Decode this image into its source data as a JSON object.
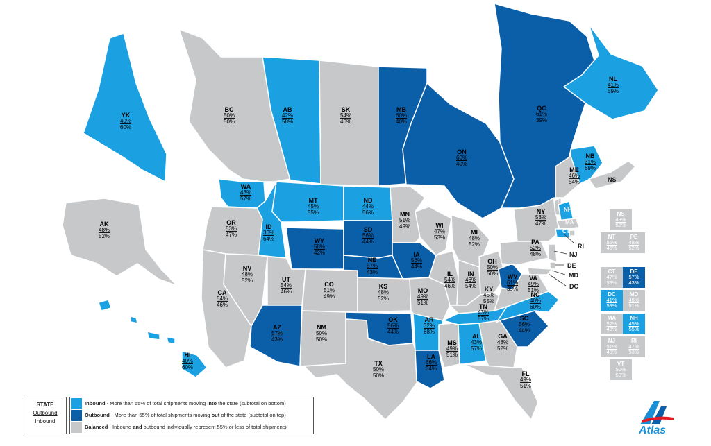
{
  "colors": {
    "inbound": "#1ba1e2",
    "outbound": "#0b5ea8",
    "balanced": "#c7c8ca",
    "border": "#ffffff"
  },
  "regions": [
    {
      "id": "YK",
      "cat": "inbound",
      "o": "40%",
      "i": "60%"
    },
    {
      "id": "BC",
      "cat": "balanced",
      "o": "50%",
      "i": "50%"
    },
    {
      "id": "AB",
      "cat": "inbound",
      "o": "42%",
      "i": "58%"
    },
    {
      "id": "SK",
      "cat": "balanced",
      "o": "54%",
      "i": "46%"
    },
    {
      "id": "MB",
      "cat": "outbound",
      "o": "60%",
      "i": "40%"
    },
    {
      "id": "ON",
      "cat": "outbound",
      "o": "60%",
      "i": "40%"
    },
    {
      "id": "QC",
      "cat": "outbound",
      "o": "61%",
      "i": "39%"
    },
    {
      "id": "NL",
      "cat": "inbound",
      "o": "41%",
      "i": "59%"
    },
    {
      "id": "NB",
      "cat": "inbound",
      "o": "31%",
      "i": "69%"
    },
    {
      "id": "AK",
      "cat": "balanced",
      "o": "48%",
      "i": "52%"
    },
    {
      "id": "WA",
      "cat": "inbound",
      "o": "43%",
      "i": "57%"
    },
    {
      "id": "OR",
      "cat": "balanced",
      "o": "53%",
      "i": "47%"
    },
    {
      "id": "ID",
      "cat": "inbound",
      "o": "36%",
      "i": "64%"
    },
    {
      "id": "MT",
      "cat": "inbound",
      "o": "45%",
      "i": "55%"
    },
    {
      "id": "ND",
      "cat": "inbound",
      "o": "44%",
      "i": "56%"
    },
    {
      "id": "MN",
      "cat": "balanced",
      "o": "51%",
      "i": "49%"
    },
    {
      "id": "WY",
      "cat": "outbound",
      "o": "58%",
      "i": "42%"
    },
    {
      "id": "SD",
      "cat": "outbound",
      "o": "56%",
      "i": "44%"
    },
    {
      "id": "NE",
      "cat": "outbound",
      "o": "57%",
      "i": "43%"
    },
    {
      "id": "IA",
      "cat": "outbound",
      "o": "56%",
      "i": "44%"
    },
    {
      "id": "WI",
      "cat": "balanced",
      "o": "47%",
      "i": "53%"
    },
    {
      "id": "MI",
      "cat": "balanced",
      "o": "48%",
      "i": "52%"
    },
    {
      "id": "CA",
      "cat": "balanced",
      "o": "54%",
      "i": "46%"
    },
    {
      "id": "NV",
      "cat": "balanced",
      "o": "48%",
      "i": "52%"
    },
    {
      "id": "UT",
      "cat": "balanced",
      "o": "54%",
      "i": "46%"
    },
    {
      "id": "CO",
      "cat": "balanced",
      "o": "51%",
      "i": "49%"
    },
    {
      "id": "KS",
      "cat": "balanced",
      "o": "48%",
      "i": "52%"
    },
    {
      "id": "MO",
      "cat": "balanced",
      "o": "49%",
      "i": "51%"
    },
    {
      "id": "IL",
      "cat": "balanced",
      "o": "54%",
      "i": "46%"
    },
    {
      "id": "IN",
      "cat": "balanced",
      "o": "46%",
      "i": "54%"
    },
    {
      "id": "OH",
      "cat": "balanced",
      "o": "50%",
      "i": "50%"
    },
    {
      "id": "KY",
      "cat": "balanced",
      "o": "45%",
      "i": "55%"
    },
    {
      "id": "WV",
      "cat": "outbound",
      "o": "61%",
      "i": "39%"
    },
    {
      "id": "VA",
      "cat": "balanced",
      "o": "49%",
      "i": "51%"
    },
    {
      "id": "PA",
      "cat": "balanced",
      "o": "52%",
      "i": "48%"
    },
    {
      "id": "NY",
      "cat": "balanced",
      "o": "53%",
      "i": "47%"
    },
    {
      "id": "ME",
      "cat": "balanced",
      "o": "46%",
      "i": "54%"
    },
    {
      "id": "AZ",
      "cat": "outbound",
      "o": "57%",
      "i": "43%"
    },
    {
      "id": "NM",
      "cat": "balanced",
      "o": "50%",
      "i": "50%"
    },
    {
      "id": "OK",
      "cat": "outbound",
      "o": "56%",
      "i": "44%"
    },
    {
      "id": "AR",
      "cat": "inbound",
      "o": "32%",
      "i": "68%"
    },
    {
      "id": "TN",
      "cat": "inbound",
      "o": "43%",
      "i": "57%"
    },
    {
      "id": "NC",
      "cat": "inbound",
      "o": "40%",
      "i": "60%"
    },
    {
      "id": "SC",
      "cat": "outbound",
      "o": "56%",
      "i": "44%"
    },
    {
      "id": "TX",
      "cat": "balanced",
      "o": "50%",
      "i": "50%"
    },
    {
      "id": "LA",
      "cat": "outbound",
      "o": "66%",
      "i": "34%"
    },
    {
      "id": "MS",
      "cat": "balanced",
      "o": "49%",
      "i": "51%"
    },
    {
      "id": "AL",
      "cat": "inbound",
      "o": "43%",
      "i": "57%"
    },
    {
      "id": "GA",
      "cat": "balanced",
      "o": "48%",
      "i": "52%"
    },
    {
      "id": "FL",
      "cat": "balanced",
      "o": "49%",
      "i": "51%"
    },
    {
      "id": "HI",
      "cat": "inbound",
      "o": "40%",
      "i": "60%"
    }
  ],
  "small_labels": [
    "NS",
    "VT",
    "NH",
    "MA",
    "CT",
    "RI",
    "NJ",
    "DE",
    "MD",
    "DC"
  ],
  "side_boxes": [
    {
      "id": "NS",
      "cat": "balanced",
      "o": "48%",
      "i": "52%"
    },
    {
      "id": "NT",
      "cat": "balanced",
      "o": "55%",
      "i": "45%"
    },
    {
      "id": "PE",
      "cat": "balanced",
      "o": "48%",
      "i": "52%"
    },
    {
      "id": "CT",
      "cat": "balanced",
      "o": "47%",
      "i": "53%"
    },
    {
      "id": "DE",
      "cat": "outbound",
      "o": "57%",
      "i": "43%"
    },
    {
      "id": "DC",
      "cat": "inbound",
      "o": "41%",
      "i": "59%"
    },
    {
      "id": "MD",
      "cat": "balanced",
      "o": "49%",
      "i": "51%"
    },
    {
      "id": "MA",
      "cat": "balanced",
      "o": "52%",
      "i": "48%"
    },
    {
      "id": "NH",
      "cat": "inbound",
      "o": "45%",
      "i": "55%"
    },
    {
      "id": "NJ",
      "cat": "balanced",
      "o": "51%",
      "i": "49%"
    },
    {
      "id": "RI",
      "cat": "balanced",
      "o": "47%",
      "i": "53%"
    },
    {
      "id": "VT",
      "cat": "balanced",
      "o": "50%",
      "i": "50%"
    }
  ],
  "legend": {
    "key_title": "STATE",
    "key_outbound": "Outbound",
    "key_inbound": "Inbound",
    "rows": [
      {
        "cat": "inbound",
        "name": "Inbound",
        "text_a": " - More than 55% of total shipments moving ",
        "emph": "into",
        "text_b": " the state (subtotal on bottom)"
      },
      {
        "cat": "outbound",
        "name": "Outbound",
        "text_a": " - More than 55% of total shipments moving ",
        "emph": "out",
        "text_b": " of the state (subtotal on top)"
      },
      {
        "cat": "balanced",
        "name": "Balanced",
        "text_a": " - Inbound ",
        "emph": "and",
        "text_b": " outbound individually represent 55% or less of total shipments."
      }
    ]
  },
  "logo_text": "Atlas"
}
